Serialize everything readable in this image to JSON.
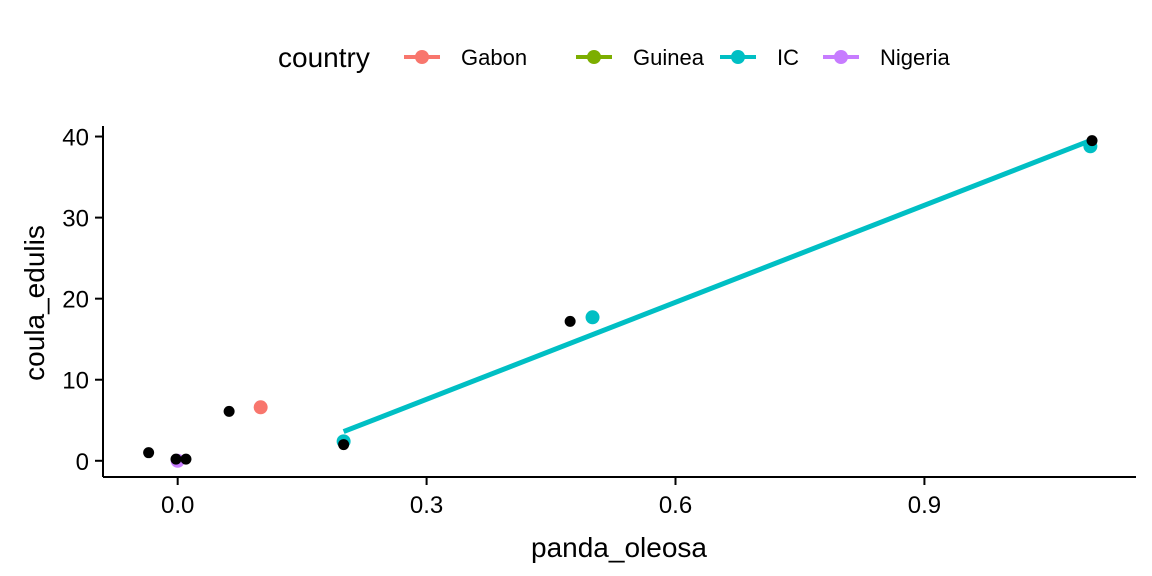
{
  "chart_data": {
    "type": "scatter",
    "xlabel": "panda_oleosa",
    "ylabel": "coula_edulis",
    "xlim": [
      -0.09,
      1.155
    ],
    "ylim": [
      -2.0,
      41.3
    ],
    "x_ticks": [
      0.0,
      0.3,
      0.6,
      0.9
    ],
    "x_tick_labels": [
      "0.0",
      "0.3",
      "0.6",
      "0.9"
    ],
    "y_ticks": [
      0,
      10,
      20,
      30,
      40
    ],
    "y_tick_labels": [
      "0",
      "10",
      "20",
      "30",
      "40"
    ],
    "grid": false,
    "legend": {
      "title": "country",
      "position": "top",
      "entries": [
        {
          "label": "Gabon",
          "color": "#F8766D"
        },
        {
          "label": "Guinea",
          "color": "#7CAE00"
        },
        {
          "label": "IC",
          "color": "#00BFC4"
        },
        {
          "label": "Nigeria",
          "color": "#C77CFF"
        }
      ]
    },
    "series": [
      {
        "name": "Gabon",
        "color": "#F8766D",
        "points": [
          {
            "x": 0.1,
            "y": 6.6
          }
        ]
      },
      {
        "name": "IC",
        "color": "#00BFC4",
        "points": [
          {
            "x": 0.2,
            "y": 2.4
          },
          {
            "x": 0.5,
            "y": 17.7
          },
          {
            "x": 1.1,
            "y": 38.8
          }
        ]
      },
      {
        "name": "Nigeria",
        "color": "#C77CFF",
        "points": [
          {
            "x": 0.0,
            "y": 0.0
          }
        ]
      }
    ],
    "black_points": [
      {
        "x": -0.035,
        "y": 1.0
      },
      {
        "x": -0.002,
        "y": 0.2
      },
      {
        "x": 0.01,
        "y": 0.2
      },
      {
        "x": 0.062,
        "y": 6.1
      },
      {
        "x": 0.2,
        "y": 2.0
      },
      {
        "x": 0.473,
        "y": 17.2
      },
      {
        "x": 1.102,
        "y": 39.5
      }
    ],
    "trend_lines": [
      {
        "name": "IC",
        "color": "#00BFC4",
        "x": [
          0.2,
          1.1
        ],
        "y": [
          3.6,
          39.5
        ]
      }
    ]
  }
}
